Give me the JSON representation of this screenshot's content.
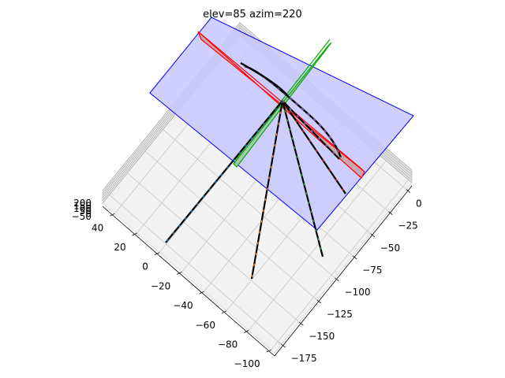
{
  "chart_data": {
    "type": "3d-line",
    "title": "elev=85 azim=220",
    "view": {
      "elev": 85,
      "azim": 220
    },
    "x_axis": {
      "ticks": [
        "0",
        "−25",
        "−50",
        "−75",
        "−100",
        "−125",
        "−150",
        "−175"
      ]
    },
    "y_axis": {
      "ticks": [
        "40",
        "20",
        "0",
        "−20",
        "−40",
        "−60",
        "−80",
        "−100"
      ]
    },
    "z_axis": {
      "ticks": [
        "200",
        "150",
        "100",
        "50",
        "0",
        "−50"
      ]
    },
    "planes": [
      {
        "name": "blue-plane",
        "face": "#c8c8ff",
        "edge": "#0000ff"
      },
      {
        "name": "red-plane",
        "face": "#c8a0a0",
        "edge": "#ff0000"
      },
      {
        "name": "green-plane",
        "face": "#a0c8a0",
        "edge": "#00aa00"
      }
    ],
    "series_colors": [
      "#1f77b4",
      "#ff7f0e",
      "#2ca02c",
      "#d62728",
      "#9467bd"
    ],
    "grid": true,
    "pane_color": "#f2f2f2"
  }
}
